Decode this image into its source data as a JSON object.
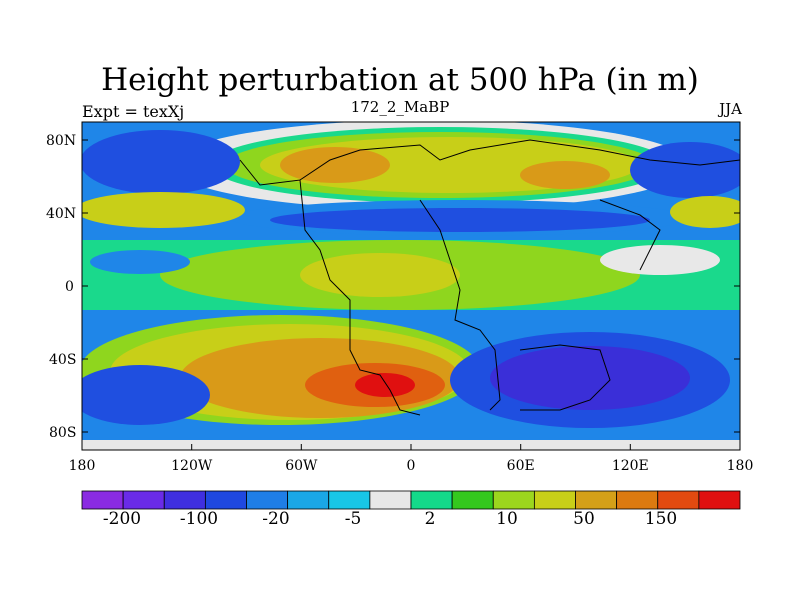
{
  "title": "Height perturbation at 500 hPa (in m)",
  "left_label": "Expt = texXj",
  "center_label": "172_2_MaBP",
  "right_label": "JJA",
  "lat_ticks": [
    "80N",
    "40N",
    "0",
    "40S",
    "80S"
  ],
  "lon_ticks": [
    "180",
    "120W",
    "60W",
    "0",
    "60E",
    "120E",
    "180"
  ],
  "colorbar": {
    "labels": [
      "-200",
      "-100",
      "-20",
      "-5",
      "2",
      "10",
      "50",
      "150"
    ],
    "colors": [
      "#8a2be2",
      "#6a2be8",
      "#3f2fe0",
      "#1f48e0",
      "#1f7ee6",
      "#1aa7e6",
      "#18c6e6",
      "#e8e8e8",
      "#14d98a",
      "#34c81e",
      "#9cd61e",
      "#c8cf18",
      "#d4a018",
      "#dc7a10",
      "#e24a10",
      "#e01010"
    ]
  },
  "map": {
    "color_neg3": "#3a2fd8",
    "color_neg2": "#1f4fe0",
    "color_neg1": "#1f86e8",
    "color_zero": "#e8e8e8",
    "color_pos1": "#1ad98c",
    "color_pos2": "#8fd61e",
    "color_pos3": "#c8cf18",
    "color_pos4": "#d99a18",
    "color_pos5": "#e06010",
    "color_pos6": "#e01010"
  }
}
